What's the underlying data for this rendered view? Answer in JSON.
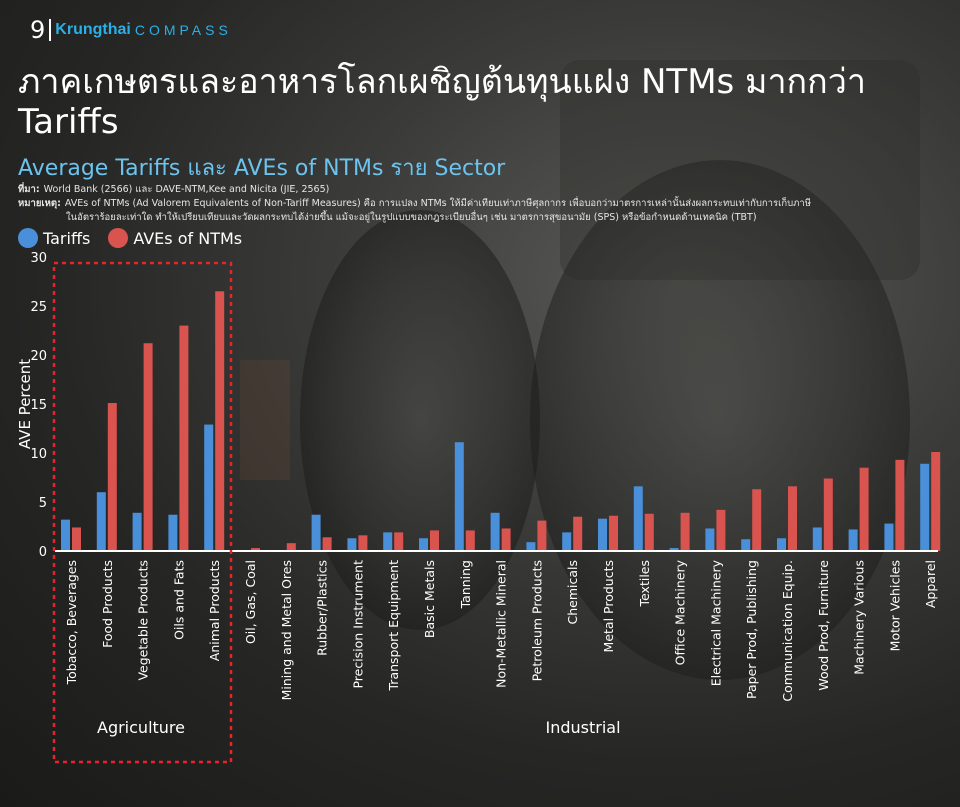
{
  "header": {
    "page_number": "9",
    "brand_main": "Krungthai",
    "brand_sub": "COMPASS"
  },
  "title": "ภาคเกษตรและอาหารโลกเผชิญต้นทุนแฝง NTMs มากกว่า Tariffs",
  "subtitle": "Average Tariffs และ AVEs of NTMs ราย Sector",
  "source": {
    "label": "ที่มา:",
    "text": "World Bank (2566) และ DAVE-NTM,Kee and Nicita (JIE, 2565)"
  },
  "remark": {
    "label": "หมายเหตุ:",
    "line1": "AVEs of NTMs (Ad Valorem Equivalents of Non-Tariff Measures) คือ การแปลง NTMs ให้มีค่าเทียบเท่าภาษีศุลกากร เพื่อบอกว่ามาตรการเหล่านั้นส่งผลกระทบเท่ากับการเก็บภาษี",
    "line2": "ในอัตราร้อยละเท่าใด ทำให้เปรียบเทียบและวัดผลกระทบได้ง่ายขึ้น แม้จะอยู่ในรูปแบบของกฎระเบียบอื่นๆ เช่น มาตรการสุขอนามัย (SPS) หรือข้อกำหนดด้านเทคนิค (TBT)"
  },
  "colors": {
    "tariffs": "#4a8fd9",
    "ntms": "#d9534f",
    "highlight": "#e8232a",
    "brand": "#2ab0e6"
  },
  "chart_data": {
    "type": "bar",
    "ylabel": "AVE Percent",
    "ylim": [
      0,
      30
    ],
    "yticks": [
      0,
      5,
      10,
      15,
      20,
      25,
      30
    ],
    "categories": [
      "Tobacco, Beverages",
      "Food Products",
      "Vegetable Products",
      "Oils and Fats",
      "Animal Products",
      "Oil, Gas, Coal",
      "Mining and Metal Ores",
      "Rubber/Plastics",
      "Precision Instrument",
      "Transport Equipment",
      "Basic Metals",
      "Tanning",
      "Non-Metallic Mineral",
      "Petroleum Products",
      "Chemicals",
      "Metal Products",
      "Textiles",
      "Office Machinery",
      "Electrical Machinery",
      "Paper Prod, Publishing",
      "Communication Equip.",
      "Wood Prod, Furniture",
      "Machinery Various",
      "Motor Vehicles",
      "Apparel"
    ],
    "series": [
      {
        "name": "Tariffs",
        "values": [
          3.2,
          6.0,
          3.9,
          3.7,
          12.9,
          0.1,
          0.1,
          3.7,
          1.3,
          1.9,
          1.3,
          11.1,
          3.9,
          0.9,
          1.9,
          3.3,
          6.6,
          0.3,
          2.3,
          1.2,
          1.3,
          2.4,
          2.2,
          2.8,
          8.9
        ]
      },
      {
        "name": "AVEs of NTMs",
        "values": [
          2.4,
          15.1,
          21.2,
          23.0,
          26.5,
          0.3,
          0.8,
          1.4,
          1.6,
          1.9,
          2.1,
          2.1,
          2.3,
          3.1,
          3.5,
          3.6,
          3.8,
          3.9,
          4.2,
          6.3,
          6.6,
          7.4,
          8.5,
          9.3,
          10.1
        ]
      }
    ],
    "groups": [
      {
        "label": "Agriculture"
      },
      {
        "label": "Industrial"
      }
    ]
  }
}
